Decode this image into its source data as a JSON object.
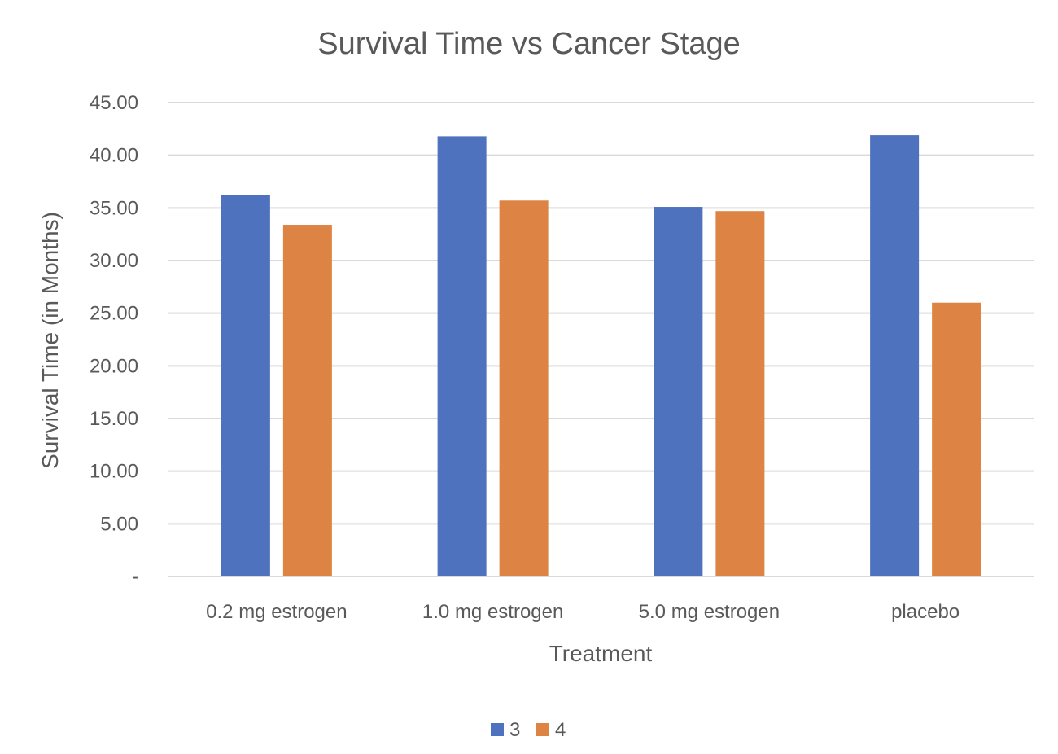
{
  "chart_data": {
    "type": "bar",
    "title": "Survival Time vs Cancer Stage",
    "xlabel": "Treatment",
    "ylabel": "Survival Time (in Months)",
    "categories": [
      "0.2 mg estrogen",
      "1.0 mg estrogen",
      "5.0 mg estrogen",
      "placebo"
    ],
    "series": [
      {
        "name": "3",
        "color": "#4f72be",
        "values": [
          36.2,
          41.8,
          35.1,
          41.9
        ]
      },
      {
        "name": "4",
        "color": "#dd8444",
        "values": [
          33.4,
          35.7,
          34.7,
          26.0
        ]
      }
    ],
    "ylim": [
      0,
      45
    ],
    "yticks": [
      0,
      5,
      10,
      15,
      20,
      25,
      30,
      35,
      40,
      45
    ],
    "ytick_labels": [
      "-",
      "5.00",
      "10.00",
      "15.00",
      "20.00",
      "25.00",
      "30.00",
      "35.00",
      "40.00",
      "45.00"
    ],
    "grid": true,
    "legend_position": "bottom"
  }
}
